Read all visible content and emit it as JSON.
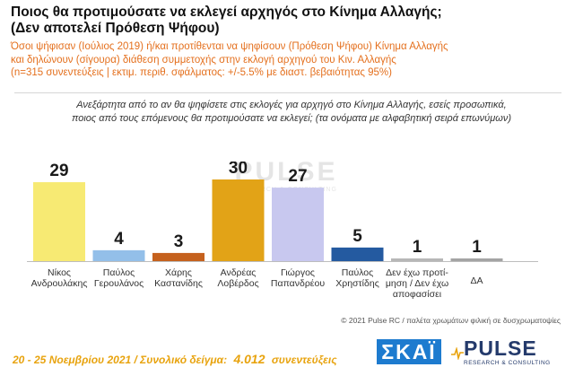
{
  "header": {
    "title_line1": "Ποιος θα προτιμούσατε να εκλεγεί αρχηγός στο Κίνημα Αλλαγής;",
    "title_line2": "(Δεν αποτελεί Πρόθεση Ψήφου)",
    "sub_line1": "Όσοι ψήφισαν (Ιούλιος 2019) ή/και προτίθενται να ψηφίσουν (Πρόθεση Ψήφου) Κίνημα Αλλαγής",
    "sub_line2": "και δηλώνουν (σίγουρα) διάθεση συμμετοχής στην εκλογή αρχηγού του Κιν. Αλλαγής",
    "sub_line3": "(n=315 συνεντεύξεις | εκτιμ. περιθ. σφάλματος: +/-5.5% με διαστ. βεβαιότητας 95%)"
  },
  "question": {
    "line1": "Ανεξάρτητα από το αν θα ψηφίσετε στις εκλογές για αρχηγό στο Κίνημα Αλλαγής, εσείς προσωπικά,",
    "line2": "ποιος από τους επόμενους θα προτιμούσατε να εκλεγεί; (τα ονόματα με αλφαβητική σειρά επωνύμων)"
  },
  "watermark": {
    "text": "PULSE",
    "sub": "RESEARCH & CONSULTING"
  },
  "chart_data": {
    "type": "bar",
    "categories": [
      [
        "Νίκος",
        "Ανδρουλάκης"
      ],
      [
        "Παύλος",
        "Γερουλάνος"
      ],
      [
        "Χάρης",
        "Καστανίδης"
      ],
      [
        "Ανδρέας",
        "Λοβέρδος"
      ],
      [
        "Γιώργος",
        "Παπανδρέου"
      ],
      [
        "Παύλος",
        "Χρηστίδης"
      ],
      [
        "Δεν έχω προτί-",
        "μηση / Δεν έχω",
        "αποφασίσει"
      ],
      [
        "ΔΑ"
      ]
    ],
    "values": [
      29,
      4,
      3,
      30,
      27,
      5,
      1,
      1
    ],
    "colors": [
      "#f7ea73",
      "#93bfe9",
      "#c5611d",
      "#e2a317",
      "#c8c8ef",
      "#245aa0",
      "#b7b7b7",
      "#a4a4a4"
    ],
    "ylim": [
      0,
      30
    ],
    "grid": false
  },
  "copyright": "© 2021 Pulse RC   /   παλέτα χρωμάτων φιλική σε δυσχρωματοψίες",
  "footer": {
    "dates": "20 - 25  Νοεμβρίου 2021  /  Συνολικό δείγμα:",
    "sample": "4.012",
    "suffix": "συνεντεύξεις"
  },
  "logos": {
    "skai": "ΣΚΑΪ",
    "pulse": "PULSE",
    "pulse_sub": "RESEARCH & CONSULTING"
  }
}
